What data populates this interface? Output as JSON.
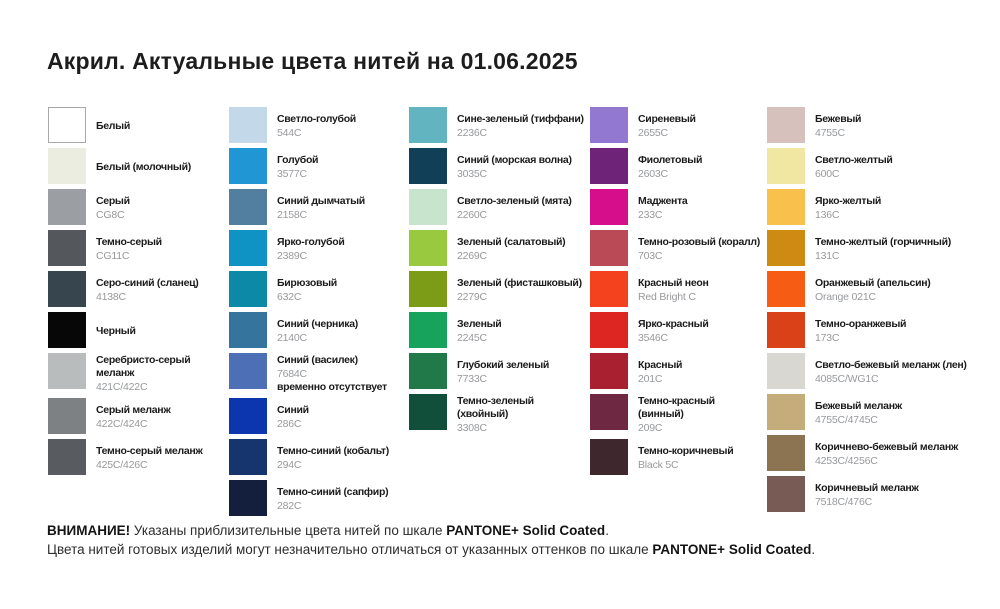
{
  "title": "Акрил. Актуальные цвета нитей на 01.06.2025",
  "swatch_border_color": "#a8a8a8",
  "columns": [
    {
      "items": [
        {
          "name": "Белый",
          "code": "",
          "color": "#ffffff",
          "border": true
        },
        {
          "name": "Белый (молочный)",
          "code": "",
          "color": "#ebede0"
        },
        {
          "name": "Серый",
          "code": "CG8C",
          "color": "#9b9ea3"
        },
        {
          "name": "Темно-серый",
          "code": "CG11C",
          "color": "#54575c"
        },
        {
          "name": "Серо-синий (сланец)",
          "code": "4138C",
          "color": "#37454f"
        },
        {
          "name": "Черный",
          "code": "",
          "color": "#070707"
        },
        {
          "name": "Серебристо-серый меланж",
          "code": "421C/422C",
          "color": "#b9bcbc"
        },
        {
          "name": "Серый меланж",
          "code": "422C/424C",
          "color": "#7d8184"
        },
        {
          "name": "Темно-серый меланж",
          "code": "425C/426C",
          "color": "#585c60"
        }
      ]
    },
    {
      "items": [
        {
          "name": "Светло-голубой",
          "code": "544C",
          "color": "#c3d8e8"
        },
        {
          "name": "Голубой",
          "code": "3577C",
          "color": "#2196d4"
        },
        {
          "name": "Синий дымчатый",
          "code": "2158C",
          "color": "#527ea0"
        },
        {
          "name": "Ярко-голубой",
          "code": "2389C",
          "color": "#0e93c4"
        },
        {
          "name": "Бирюзовый",
          "code": "632C",
          "color": "#0b89a6"
        },
        {
          "name": "Синий (черника)",
          "code": "2140C",
          "color": "#35749c"
        },
        {
          "name": "Синий (василек)",
          "code": "7684C",
          "color": "#4c6fb5",
          "note": "временно отсутствует"
        },
        {
          "name": "Синий",
          "code": "286C",
          "color": "#0c36ad"
        },
        {
          "name": "Темно-синий (кобальт)",
          "code": "294C",
          "color": "#16356f"
        },
        {
          "name": "Темно-синий (сапфир)",
          "code": "282C",
          "color": "#141f3e"
        }
      ]
    },
    {
      "items": [
        {
          "name": "Сине-зеленый (тиффани)",
          "code": "2236C",
          "color": "#61b4c0"
        },
        {
          "name": "Синий (морская волна)",
          "code": "3035C",
          "color": "#113f58"
        },
        {
          "name": "Светло-зеленый (мята)",
          "code": "2260C",
          "color": "#c9e4cc"
        },
        {
          "name": "Зеленый (салатовый)",
          "code": "2269C",
          "color": "#99c93e"
        },
        {
          "name": "Зеленый (фисташковый)",
          "code": "2279C",
          "color": "#7c9b16"
        },
        {
          "name": "Зеленый",
          "code": "2245C",
          "color": "#17a35c"
        },
        {
          "name": "Глубокий зеленый",
          "code": "7733C",
          "color": "#21794a"
        },
        {
          "name": "Темно-зеленый (хвойный)",
          "code": "3308C",
          "color": "#114f3b"
        }
      ]
    },
    {
      "items": [
        {
          "name": "Сиреневый",
          "code": "2655C",
          "color": "#9378d2"
        },
        {
          "name": "Фиолетовый",
          "code": "2603C",
          "color": "#6e2278"
        },
        {
          "name": "Маджента",
          "code": "233C",
          "color": "#d60e8c"
        },
        {
          "name": "Темно-розовый (коралл)",
          "code": "703C",
          "color": "#ba4a56"
        },
        {
          "name": "Красный неон",
          "code": "Red Bright C",
          "color": "#f5421e"
        },
        {
          "name": "Ярко-красный",
          "code": "3546C",
          "color": "#dd2521"
        },
        {
          "name": "Красный",
          "code": "201C",
          "color": "#a92031"
        },
        {
          "name": "Темно-красный (винный)",
          "code": "209C",
          "color": "#6f2842"
        },
        {
          "name": "Темно-коричневый",
          "code": "Black 5C",
          "color": "#3e282d"
        }
      ]
    },
    {
      "items": [
        {
          "name": "Бежевый",
          "code": "4755C",
          "color": "#d6c1bc"
        },
        {
          "name": "Светло-желтый",
          "code": "600C",
          "color": "#f0e8a2"
        },
        {
          "name": "Ярко-желтый",
          "code": "136C",
          "color": "#f8c14b"
        },
        {
          "name": "Темно-желтый (горчичный)",
          "code": "131C",
          "color": "#ce8b13"
        },
        {
          "name": "Оранжевый (апельсин)",
          "code": "Orange 021C",
          "color": "#f75c15"
        },
        {
          "name": "Темно-оранжевый",
          "code": "173C",
          "color": "#d94219"
        },
        {
          "name": "Светло-бежевый меланж (лен)",
          "code": "4085C/WG1C",
          "color": "#d9d7d1"
        },
        {
          "name": "Бежевый меланж",
          "code": "4755C/4745C",
          "color": "#c5ac7b"
        },
        {
          "name": "Коричнево-бежевый меланж",
          "code": "4253C/4256C",
          "color": "#8c7351"
        },
        {
          "name": "Коричневый меланж",
          "code": "7518C/476C",
          "color": "#795b56"
        }
      ]
    }
  ],
  "footer": {
    "lines": [
      {
        "parts": [
          {
            "t": "ВНИМАНИЕ!",
            "b": true
          },
          {
            "t": " Указаны приблизительные цвета нитей по шкале ",
            "b": false
          },
          {
            "t": "PANTONE+ Solid Coated",
            "b": true
          },
          {
            "t": ".",
            "b": false
          }
        ]
      },
      {
        "parts": [
          {
            "t": "Цвета нитей готовых изделий могут незначительно отличаться от указанных оттенков по шкале ",
            "b": false
          },
          {
            "t": "PANTONE+ Solid Coated",
            "b": true
          },
          {
            "t": ".",
            "b": false
          }
        ]
      }
    ]
  }
}
